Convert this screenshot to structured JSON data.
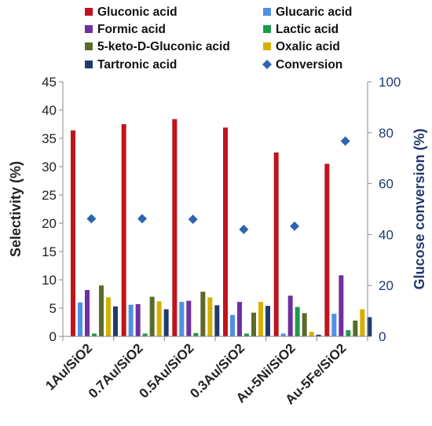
{
  "chart_data": {
    "type": "bar",
    "categories": [
      "1Au/SiO2",
      "0.7Au/SiO2",
      "0.5Au/SiO2",
      "0.3Au/SiO2",
      "Au-5Ni/SiO2",
      "Au-5Fe/SiO2"
    ],
    "series": [
      {
        "name": "Gluconic acid",
        "color": "#c0141b",
        "values": [
          36.4,
          37.5,
          38.4,
          36.9,
          32.5,
          30.5
        ]
      },
      {
        "name": "Glucaric acid",
        "color": "#4f8fe6",
        "values": [
          6.0,
          5.6,
          6.1,
          3.8,
          0.5,
          4.0
        ]
      },
      {
        "name": "Formic acid",
        "color": "#7030a0",
        "values": [
          8.2,
          5.7,
          6.3,
          6.1,
          7.2,
          10.8
        ]
      },
      {
        "name": "Lactic acid",
        "color": "#1e9a4b",
        "values": [
          0.5,
          0.5,
          0.6,
          0.5,
          5.2,
          1.1
        ]
      },
      {
        "name": "5-keto-D-Gluconic  acid",
        "color": "#5a6b2a",
        "values": [
          9.0,
          7.0,
          7.9,
          4.2,
          4.1,
          2.8
        ]
      },
      {
        "name": "Oxalic acid",
        "color": "#d6b000",
        "values": [
          6.9,
          6.2,
          6.9,
          6.1,
          0.8,
          4.8
        ]
      },
      {
        "name": "Tartronic acid",
        "color": "#1f3b6f",
        "values": [
          5.3,
          4.8,
          5.5,
          5.4,
          0.3,
          3.4
        ]
      }
    ],
    "conversion": {
      "name": "Conversion",
      "color": "#2e64b0",
      "values": [
        46.2,
        46.2,
        46.0,
        42.0,
        43.3,
        76.7
      ]
    },
    "ylabel": "Selectivity (%)",
    "y2label": "Glucose conversion (%)",
    "ylim": [
      0,
      45
    ],
    "y2lim": [
      0,
      100
    ],
    "yticks": [
      "0",
      "5",
      "10",
      "15",
      "20",
      "25",
      "30",
      "35",
      "40",
      "45"
    ],
    "y2ticks": [
      "0",
      "20",
      "40",
      "60",
      "80",
      "100"
    ],
    "legend_position": "top",
    "grid": false
  }
}
